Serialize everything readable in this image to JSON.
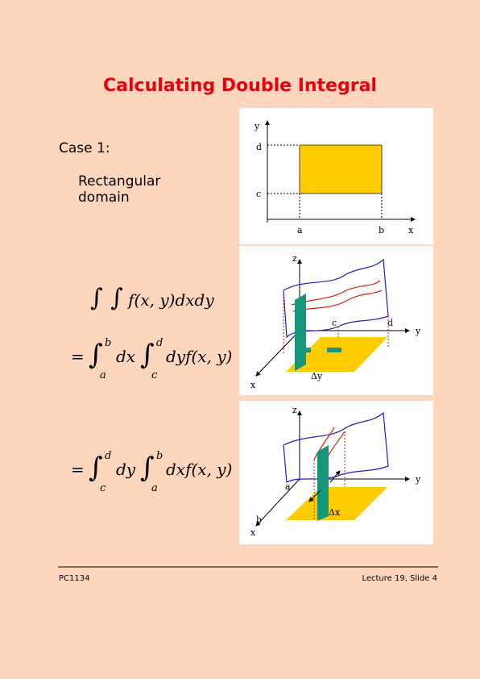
{
  "slide": {
    "title": "Calculating Double Integral",
    "case": "Case 1:",
    "description": [
      "Rectangular",
      "domain"
    ]
  },
  "equations": [
    {
      "integrals": "∫ ∫",
      "body": "f(x, y)dxdy"
    },
    {
      "equals": "=",
      "outer": {
        "sign": "∫",
        "lower": "a",
        "upper": "b",
        "body": "dx"
      },
      "inner": {
        "sign": "∫",
        "lower": "c",
        "upper": "d",
        "body": "dyf(x, y)"
      }
    },
    {
      "equals": "=",
      "outer": {
        "sign": "∫",
        "lower": "c",
        "upper": "d",
        "body": "dy"
      },
      "inner": {
        "sign": "∫",
        "lower": "a",
        "upper": "b",
        "body": "dxf(x, y)"
      }
    }
  ],
  "figures": [
    {
      "labels": {
        "y": "y",
        "d": "d",
        "c": "c",
        "a": "a",
        "b": "b",
        "x": "x"
      }
    },
    {
      "labels": {
        "z": "z",
        "c": "c",
        "d": "d",
        "y": "y",
        "delta": "Δy",
        "x": "x"
      }
    },
    {
      "labels": {
        "z": "z",
        "a": "a",
        "y": "y",
        "delta": "Δx",
        "b": "b",
        "x": "x"
      }
    }
  ],
  "footer": {
    "left": "PC1134",
    "right": "Lecture 19, Slide 4"
  }
}
